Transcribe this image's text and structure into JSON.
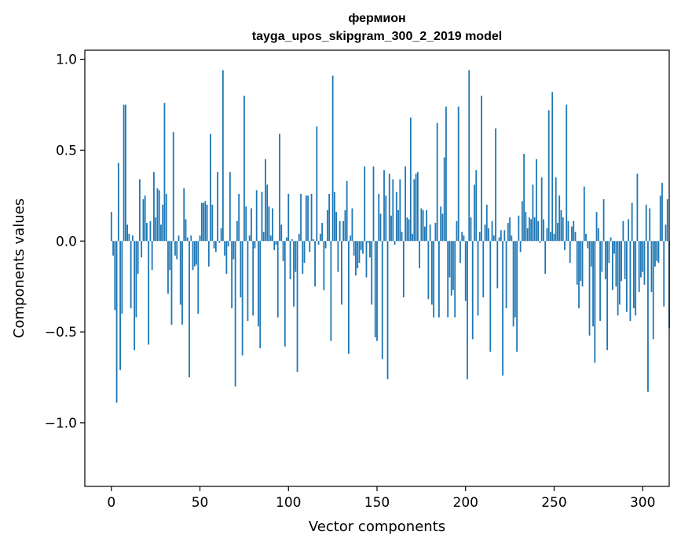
{
  "chart_data": {
    "type": "bar",
    "title": "фермион",
    "subtitle": "tayga_upos_skipgram_300_2_2019 model",
    "xlabel": "Vector components",
    "ylabel": "Components values",
    "xlim": [
      -15,
      315
    ],
    "ylim": [
      -1.35,
      1.05
    ],
    "xticks": [
      0,
      50,
      100,
      150,
      200,
      250,
      300
    ],
    "yticks": [
      -1.0,
      -0.5,
      0.0,
      0.5,
      1.0
    ],
    "ytick_labels": [
      "−1.0",
      "−0.5",
      "0.0",
      "0.5",
      "1.0"
    ],
    "bar_color": "#1f77b4",
    "grid": false,
    "values": [
      0.16,
      -0.08,
      -0.38,
      -0.89,
      0.43,
      -0.71,
      -0.4,
      0.75,
      0.75,
      0.09,
      0.04,
      -0.37,
      0.03,
      -0.6,
      -0.42,
      -0.18,
      0.34,
      -0.09,
      0.23,
      0.25,
      0.1,
      -0.57,
      0.11,
      -0.16,
      0.38,
      0.13,
      0.29,
      0.28,
      0.09,
      0.2,
      0.76,
      0.26,
      -0.29,
      -0.16,
      -0.46,
      0.6,
      -0.08,
      -0.1,
      0.03,
      -0.35,
      -0.46,
      0.29,
      0.12,
      0.02,
      -0.75,
      0.03,
      -0.16,
      -0.14,
      -0.13,
      -0.4,
      0.03,
      0.21,
      0.21,
      0.22,
      0.2,
      -0.14,
      0.59,
      0.2,
      -0.04,
      -0.06,
      0.38,
      -0.01,
      0.07,
      0.94,
      -0.08,
      -0.18,
      -0.03,
      0.38,
      -0.37,
      -0.1,
      -0.8,
      0.11,
      0.26,
      -0.31,
      -0.63,
      0.8,
      0.19,
      -0.44,
      0.03,
      0.18,
      -0.41,
      -0.04,
      0.28,
      -0.47,
      -0.59,
      0.27,
      0.05,
      0.45,
      0.31,
      0.19,
      0.03,
      0.18,
      -0.05,
      -0.02,
      -0.42,
      0.59,
      0.09,
      -0.11,
      -0.58,
      0.02,
      0.26,
      -0.21,
      0.01,
      -0.36,
      -0.17,
      -0.72,
      0.04,
      0.26,
      -0.18,
      -0.12,
      0.25,
      0.25,
      -0.06,
      0.26,
      0.01,
      -0.25,
      0.63,
      -0.02,
      0.04,
      0.1,
      -0.27,
      -0.04,
      0.17,
      0.26,
      -0.55,
      0.91,
      0.27,
      0.16,
      -0.17,
      0.11,
      -0.35,
      0.11,
      0.17,
      0.33,
      -0.62,
      0.03,
      0.18,
      -0.08,
      -0.19,
      -0.15,
      -0.12,
      -0.05,
      -0.07,
      0.41,
      -0.2,
      -0.01,
      -0.09,
      -0.35,
      0.41,
      -0.53,
      -0.55,
      0.26,
      0.15,
      -0.65,
      0.39,
      0.25,
      -0.76,
      0.37,
      0.14,
      0.34,
      -0.02,
      0.27,
      0.17,
      0.34,
      0.05,
      -0.31,
      0.41,
      0.13,
      0.12,
      0.68,
      0.04,
      0.34,
      0.37,
      0.38,
      -0.15,
      0.18,
      0.17,
      0.08,
      0.17,
      -0.32,
      0.09,
      -0.35,
      -0.42,
      0.1,
      0.65,
      -0.42,
      0.19,
      0.15,
      0.46,
      0.74,
      -0.42,
      -0.2,
      -0.3,
      -0.27,
      -0.42,
      0.11,
      0.74,
      -0.12,
      0.05,
      0.03,
      -0.33,
      -0.76,
      0.94,
      0.13,
      -0.54,
      0.31,
      0.39,
      -0.41,
      0.05,
      0.8,
      -0.31,
      0.09,
      0.2,
      0.07,
      -0.61,
      0.11,
      0.03,
      0.62,
      -0.26,
      0.02,
      0.06,
      -0.74,
      0.06,
      -0.37,
      0.1,
      0.13,
      0.03,
      -0.47,
      -0.42,
      -0.61,
      0.14,
      -0.06,
      0.22,
      0.48,
      0.16,
      0.07,
      0.13,
      0.12,
      0.31,
      0.13,
      0.45,
      0.11,
      -0.01,
      0.35,
      0.12,
      -0.18,
      0.07,
      0.72,
      0.05,
      0.82,
      0.04,
      0.35,
      0.1,
      0.25,
      0.17,
      0.13,
      -0.05,
      0.75,
      0.11,
      -0.12,
      0.08,
      0.11,
      0.05,
      -0.24,
      -0.37,
      -0.22,
      -0.25,
      0.3,
      0.04,
      -0.04,
      -0.52,
      -0.14,
      -0.47,
      -0.67,
      0.16,
      0.07,
      -0.44,
      -0.17,
      0.23,
      -0.21,
      -0.6,
      -0.12,
      0.02,
      -0.27,
      -0.07,
      -0.25,
      -0.41,
      -0.35,
      -0.22,
      0.11,
      -0.21,
      -0.39,
      0.12,
      -0.44,
      0.21,
      -0.37,
      -0.41,
      0.37,
      -0.28,
      -0.2,
      -0.17,
      -0.24,
      0.2,
      -0.83,
      0.18,
      -0.28,
      -0.54,
      -0.14,
      -0.11,
      -0.12,
      0.25,
      0.32,
      -0.36,
      0.09,
      0.23,
      -0.48
    ]
  }
}
